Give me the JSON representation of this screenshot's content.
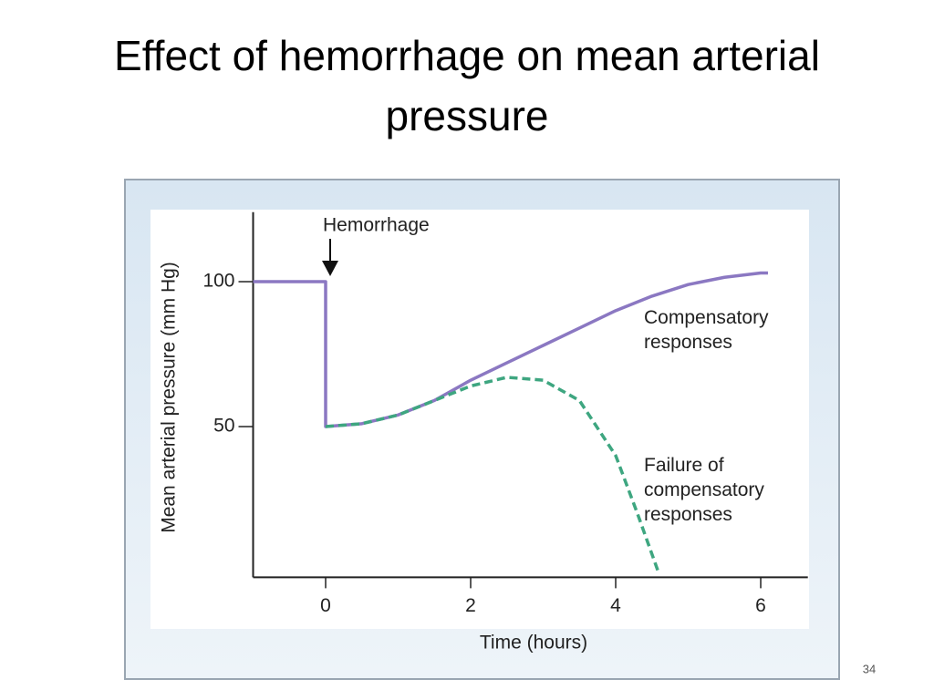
{
  "chart_data": {
    "type": "line",
    "title": "Effect of hemorrhage on mean arterial pressure",
    "x_label": "Time (hours)",
    "y_label": "Mean arterial pressure (mm Hg)",
    "xlim": [
      -1,
      6.65
    ],
    "ylim": [
      -2,
      124
    ],
    "xticks": [
      0,
      2,
      4,
      6
    ],
    "yticks": [
      50,
      100
    ],
    "grid": false,
    "annotations": [
      {
        "text": "Hemorrhage",
        "x": 0
      }
    ],
    "series": [
      {
        "name": "Compensatory responses",
        "color": "#8b78c2",
        "dashed": false,
        "x": [
          -1,
          0,
          0,
          0.5,
          1,
          1.5,
          2,
          2.5,
          3,
          3.5,
          4,
          4.5,
          5,
          5.5,
          6,
          6.1
        ],
        "values": [
          100,
          100,
          50,
          51,
          54,
          59,
          66,
          72,
          78,
          84,
          90,
          95,
          99,
          101.5,
          103,
          103
        ]
      },
      {
        "name": "Failure of compensatory responses",
        "color": "#3ea680",
        "dashed": true,
        "x": [
          0,
          0.5,
          1,
          1.5,
          2,
          2.5,
          3,
          3.5,
          4,
          4.3,
          4.6
        ],
        "values": [
          50,
          51,
          54,
          59,
          64,
          67,
          66,
          59,
          40,
          20,
          -1
        ]
      }
    ]
  },
  "page_number": "34"
}
